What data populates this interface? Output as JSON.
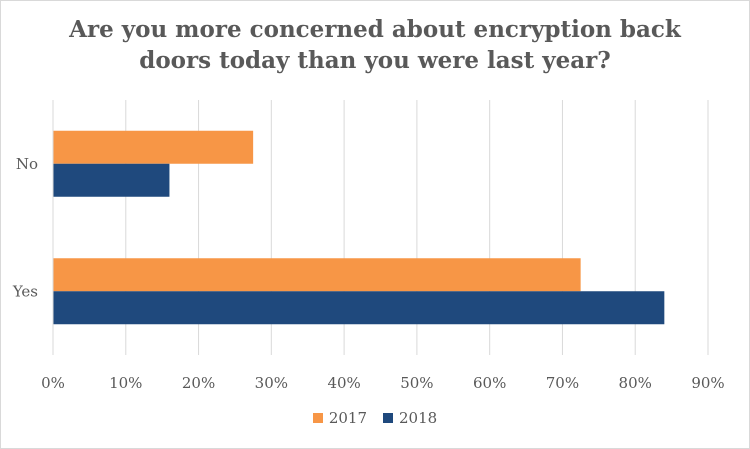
{
  "chart_data": {
    "type": "bar",
    "orientation": "horizontal",
    "title_lines": [
      "Are you more concerned about encryption back",
      "doors today than you were last year?"
    ],
    "categories": [
      "No",
      "Yes"
    ],
    "series": [
      {
        "name": "2017",
        "values": [
          27.5,
          72.5
        ],
        "color": "#f79646"
      },
      {
        "name": "2018",
        "values": [
          16,
          84
        ],
        "color": "#1f497d"
      }
    ],
    "xlim": [
      0,
      90
    ],
    "x_ticks": [
      "0%",
      "10%",
      "20%",
      "30%",
      "40%",
      "50%",
      "60%",
      "70%",
      "80%",
      "90%"
    ],
    "grid": true,
    "legend_position": "bottom"
  }
}
